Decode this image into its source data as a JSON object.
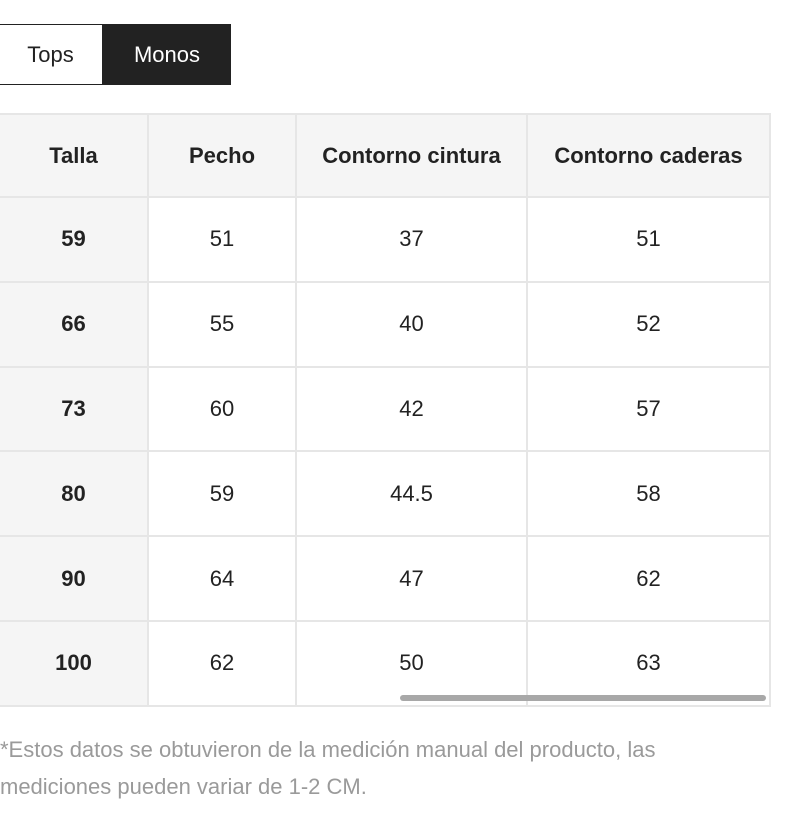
{
  "tabs": [
    "Tops",
    "Monos"
  ],
  "table": {
    "header": [
      "Talla",
      "Pecho",
      "Contorno cintura",
      "Contorno caderas"
    ],
    "rows": [
      [
        "59",
        "51",
        "37",
        "51"
      ],
      [
        "66",
        "55",
        "40",
        "52"
      ],
      [
        "73",
        "60",
        "42",
        "57"
      ],
      [
        "80",
        "59",
        "44.5",
        "58"
      ],
      [
        "90",
        "64",
        "47",
        "62"
      ],
      [
        "100",
        "62",
        "50",
        "63"
      ]
    ]
  },
  "footnote": "*Estos datos se obtuvieron de la medición manual del producto, las mediciones pueden variar de 1-2 CM."
}
